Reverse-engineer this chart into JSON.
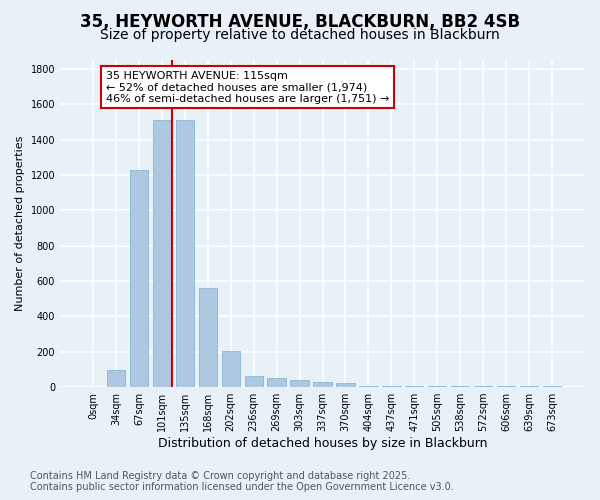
{
  "title": "35, HEYWORTH AVENUE, BLACKBURN, BB2 4SB",
  "subtitle": "Size of property relative to detached houses in Blackburn",
  "xlabel": "Distribution of detached houses by size in Blackburn",
  "ylabel": "Number of detached properties",
  "categories": [
    "0sqm",
    "34sqm",
    "67sqm",
    "101sqm",
    "135sqm",
    "168sqm",
    "202sqm",
    "236sqm",
    "269sqm",
    "303sqm",
    "337sqm",
    "370sqm",
    "404sqm",
    "437sqm",
    "471sqm",
    "505sqm",
    "538sqm",
    "572sqm",
    "606sqm",
    "639sqm",
    "673sqm"
  ],
  "values": [
    0,
    95,
    1230,
    1510,
    1510,
    560,
    205,
    65,
    50,
    40,
    30,
    25,
    8,
    8,
    8,
    8,
    8,
    8,
    8,
    8,
    8
  ],
  "bar_color": "#adc8e0",
  "bar_edge_color": "#7aafd4",
  "background_color": "#e8f0f8",
  "grid_color": "#ffffff",
  "ylim_max": 1850,
  "ytick_step": 200,
  "property_line_idx": 3.42,
  "property_label": "35 HEYWORTH AVENUE: 115sqm",
  "annotation_line1": "← 52% of detached houses are smaller (1,974)",
  "annotation_line2": "46% of semi-detached houses are larger (1,751) →",
  "annotation_box_edge": "#cc0000",
  "footer_line1": "Contains HM Land Registry data © Crown copyright and database right 2025.",
  "footer_line2": "Contains public sector information licensed under the Open Government Licence v3.0.",
  "title_fontsize": 12,
  "subtitle_fontsize": 10,
  "label_fontsize": 8,
  "tick_fontsize": 7,
  "footer_fontsize": 7
}
